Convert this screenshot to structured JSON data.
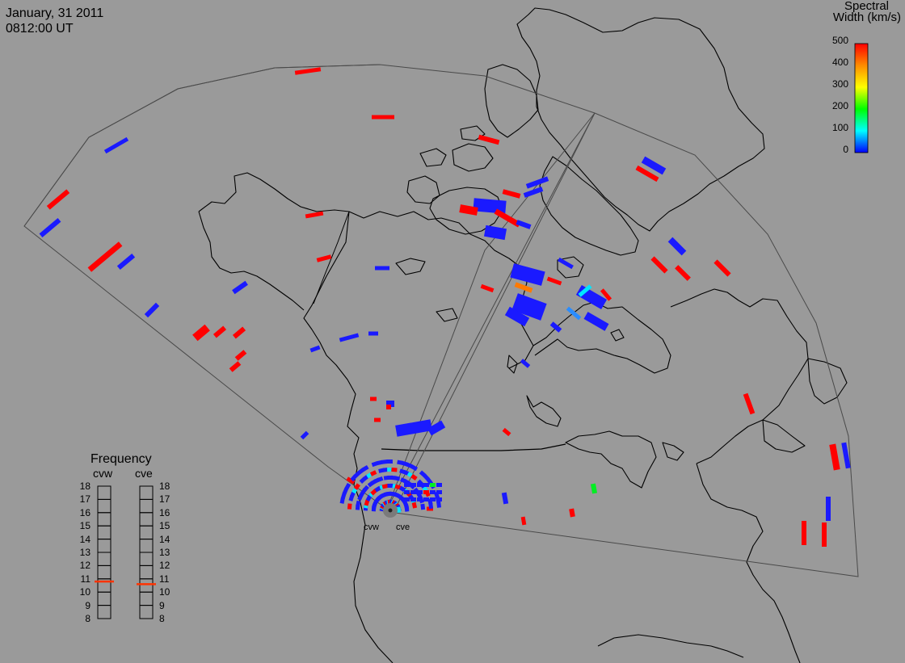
{
  "header": {
    "date": "January, 31 2011",
    "time": "0812:00 UT"
  },
  "colorbar": {
    "title_line1": "Spectral",
    "title_line2": "Width (km/s)",
    "ticks": [
      "500",
      "400",
      "300",
      "200",
      "100",
      "0"
    ],
    "colors": [
      "#ff0000",
      "#ff8c00",
      "#ffff00",
      "#00ff00",
      "#00ffff",
      "#0000ff"
    ]
  },
  "radars": {
    "west_label": "cvw",
    "east_label": "cve"
  },
  "frequency_panel": {
    "title": "Frequency",
    "col_west": "cvw",
    "col_east": "cve",
    "ticks": [
      "18",
      "17",
      "16",
      "15",
      "14",
      "13",
      "12",
      "11",
      "10",
      "9",
      "8"
    ],
    "cvw_mhz": 10.8,
    "cve_mhz": 10.6,
    "marker_color": "#ff3300"
  },
  "colors": {
    "background": "#9a9a9a",
    "coast": "#000000",
    "fov": "#444444"
  }
}
